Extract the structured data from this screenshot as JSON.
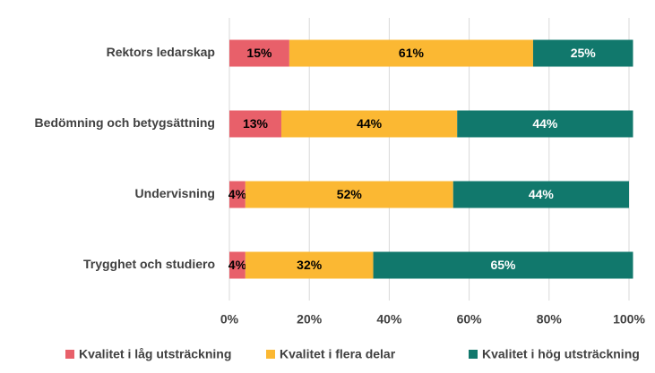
{
  "chart_data": {
    "type": "stacked_barh",
    "categories": [
      "Rektors ledarskap",
      "Bedömning och betygsättning",
      "Undervisning",
      "Trygghet och studiero"
    ],
    "series": [
      {
        "name": "Kvalitet i låg utsträckning",
        "color": "#e8606a",
        "label_color": "#000000",
        "values": [
          15,
          13,
          4,
          4
        ],
        "value_labels": [
          "15%",
          "13%",
          "4%",
          "4%"
        ]
      },
      {
        "name": "Kvalitet i flera delar",
        "color": "#fbb833",
        "label_color": "#000000",
        "values": [
          61,
          44,
          52,
          32
        ],
        "value_labels": [
          "61%",
          "44%",
          "52%",
          "32%"
        ]
      },
      {
        "name": "Kvalitet i hög utsträckning",
        "color": "#11786c",
        "label_color": "#ffffff",
        "values": [
          25,
          44,
          44,
          65
        ],
        "value_labels": [
          "25%",
          "44%",
          "44%",
          "65%"
        ]
      }
    ],
    "xlim": [
      0,
      100
    ],
    "xticks": [
      {
        "value": 0,
        "label": "0%"
      },
      {
        "value": 20,
        "label": "20%"
      },
      {
        "value": 40,
        "label": "40%"
      },
      {
        "value": 60,
        "label": "60%"
      },
      {
        "value": 80,
        "label": "80%"
      },
      {
        "value": 100,
        "label": "100%"
      }
    ],
    "grid": true,
    "legend": "bottom"
  }
}
